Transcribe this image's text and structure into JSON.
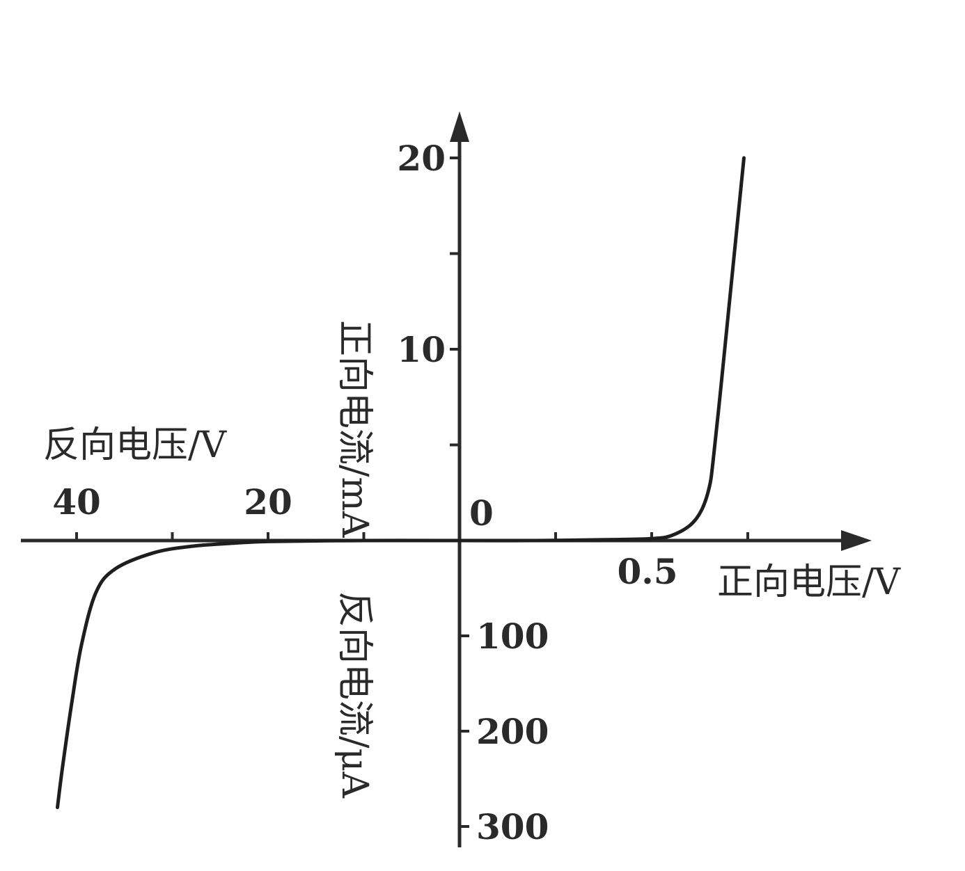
{
  "chart_data": {
    "type": "line",
    "axis_titles": {
      "forward_current": "正向电流/mA",
      "reverse_voltage": "反向电压/V",
      "forward_voltage": "正向电压/V",
      "reverse_current": "反向电流/μA"
    },
    "tick_labels": {
      "origin": "0",
      "forward_voltage": [
        {
          "value": 0.5,
          "label": "0.5"
        }
      ],
      "reverse_voltage": [
        {
          "value": 40,
          "label": "40"
        },
        {
          "value": 20,
          "label": "20"
        }
      ],
      "forward_current": [
        {
          "value": 10,
          "label": "10"
        },
        {
          "value": 20,
          "label": "20"
        }
      ],
      "reverse_current": [
        {
          "value": 100,
          "label": "100"
        },
        {
          "value": 200,
          "label": "200"
        },
        {
          "value": 300,
          "label": "300"
        }
      ]
    },
    "series": [
      {
        "id": "forward",
        "x_unit": "V",
        "y_unit": "mA",
        "points": [
          [
            0.0,
            0
          ],
          [
            0.2,
            0
          ],
          [
            0.4,
            0.05
          ],
          [
            0.5,
            0.1
          ],
          [
            0.55,
            0.25
          ],
          [
            0.6,
            0.8
          ],
          [
            0.63,
            1.6
          ],
          [
            0.65,
            2.8
          ],
          [
            0.66,
            4.2
          ],
          [
            0.68,
            8
          ],
          [
            0.7,
            12
          ],
          [
            0.72,
            16
          ],
          [
            0.74,
            20
          ]
        ]
      },
      {
        "id": "reverse",
        "x_unit": "V",
        "y_unit": "μA",
        "points": [
          [
            0,
            0
          ],
          [
            -10,
            0
          ],
          [
            -20,
            1
          ],
          [
            -24,
            3
          ],
          [
            -28,
            6
          ],
          [
            -32,
            13
          ],
          [
            -36,
            30
          ],
          [
            -38,
            55
          ],
          [
            -39.5,
            110
          ],
          [
            -40.5,
            170
          ],
          [
            -41.5,
            240
          ],
          [
            -42,
            280
          ]
        ]
      }
    ],
    "scales": {
      "forward_voltage_max": 0.8,
      "reverse_voltage_max": 45,
      "forward_current_max": 22,
      "reverse_current_max": 330
    },
    "grid": false,
    "legend": "none"
  }
}
